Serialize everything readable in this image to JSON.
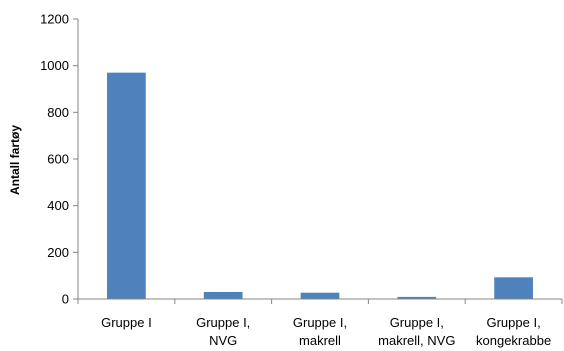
{
  "chart_data": {
    "type": "bar",
    "title": "",
    "xlabel": "",
    "ylabel": "Antall fartøy",
    "categories": [
      [
        "Gruppe I"
      ],
      [
        "Gruppe I,",
        "NVG"
      ],
      [
        "Gruppe I,",
        "makrell"
      ],
      [
        "Gruppe I,",
        "makrell, NVG"
      ],
      [
        "Gruppe I,",
        "kongekrabbe"
      ]
    ],
    "values": [
      970,
      30,
      27,
      9,
      93
    ],
    "ylim": [
      0,
      1200
    ],
    "yticks": [
      0,
      200,
      400,
      600,
      800,
      1000,
      1200
    ],
    "grid": false,
    "legend": "none",
    "colors": {
      "bar": "#4F81BD",
      "axis": "#868686"
    }
  }
}
